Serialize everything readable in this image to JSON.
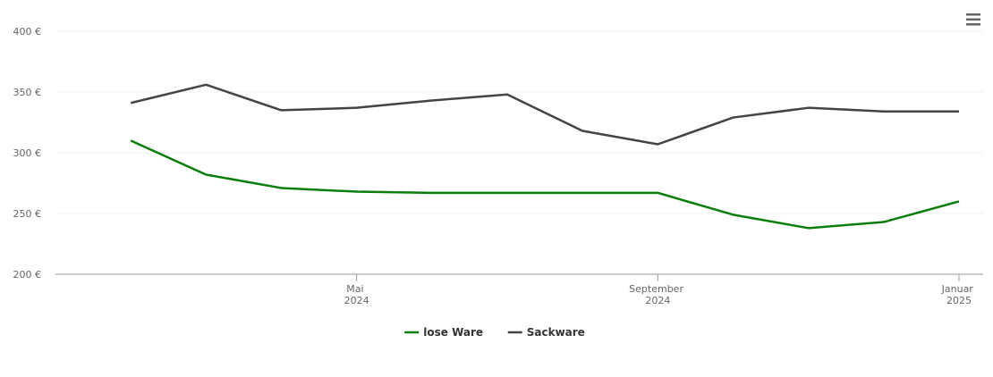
{
  "chart_data": {
    "type": "line",
    "x": [
      "2024-02",
      "2024-03",
      "2024-04",
      "2024-05",
      "2024-06",
      "2024-07",
      "2024-08",
      "2024-09",
      "2024-10",
      "2024-11",
      "2024-12",
      "2025-01"
    ],
    "series": [
      {
        "name": "lose Ware",
        "color": "#0a7d0a",
        "values": [
          310,
          282,
          271,
          268,
          267,
          267,
          267,
          267,
          249,
          238,
          243,
          260
        ]
      },
      {
        "name": "Sackware",
        "color": "#444444",
        "values": [
          341,
          356,
          335,
          337,
          343,
          348,
          318,
          307,
          329,
          337,
          334,
          334
        ]
      }
    ],
    "xlim": [
      "2024-01",
      "2025-01"
    ],
    "xticks": [
      {
        "value": "2024-05",
        "label": "Mai 2024"
      },
      {
        "value": "2024-09",
        "label": "September 2024"
      },
      {
        "value": "2025-01",
        "label": "Januar 2025"
      }
    ],
    "ylim": [
      200,
      400
    ],
    "yticks": [
      {
        "value": 200,
        "label": "200 €"
      },
      {
        "value": 250,
        "label": "250 €"
      },
      {
        "value": 300,
        "label": "300 €"
      },
      {
        "value": 350,
        "label": "350 €"
      },
      {
        "value": 400,
        "label": "400 €"
      }
    ],
    "grid": true,
    "legend": "bottom"
  }
}
